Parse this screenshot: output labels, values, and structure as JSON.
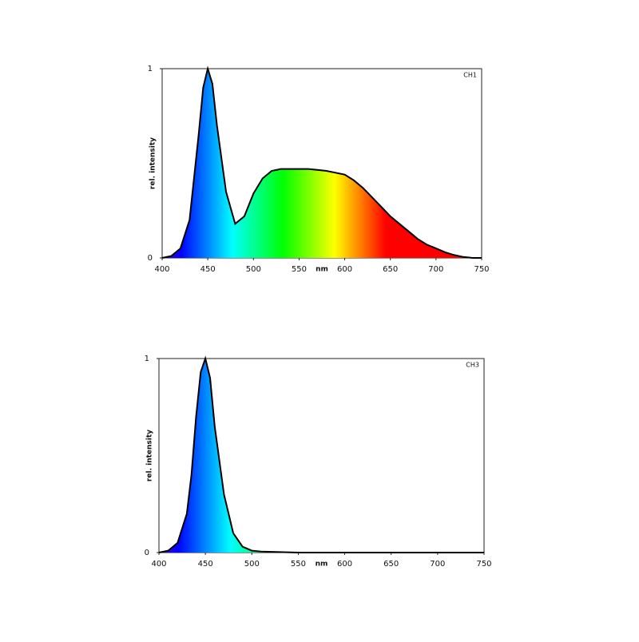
{
  "chart_data": [
    {
      "type": "area",
      "annotation": "CH1",
      "xlabel": "nm",
      "ylabel": "rel. intensity",
      "fill": "spectrum",
      "line_color": "#000000",
      "x": [
        400,
        410,
        420,
        430,
        440,
        445,
        450,
        455,
        460,
        470,
        480,
        490,
        500,
        510,
        520,
        530,
        540,
        550,
        560,
        570,
        580,
        590,
        600,
        610,
        620,
        630,
        640,
        650,
        660,
        670,
        680,
        690,
        700,
        710,
        720,
        730,
        740,
        750
      ],
      "values": [
        0,
        0.01,
        0.05,
        0.2,
        0.65,
        0.9,
        1,
        0.92,
        0.7,
        0.35,
        0.18,
        0.22,
        0.34,
        0.42,
        0.46,
        0.47,
        0.47,
        0.47,
        0.47,
        0.465,
        0.46,
        0.45,
        0.44,
        0.41,
        0.37,
        0.32,
        0.27,
        0.22,
        0.18,
        0.14,
        0.1,
        0.07,
        0.05,
        0.03,
        0.015,
        0.005,
        0,
        0
      ],
      "xlim": [
        400,
        750
      ],
      "ylim": [
        0,
        1
      ],
      "xticks": [
        400,
        450,
        500,
        550,
        600,
        650,
        700,
        750
      ],
      "yticks": [
        0,
        1
      ]
    },
    {
      "type": "area",
      "annotation": "CH3",
      "xlabel": "nm",
      "ylabel": "rel. intensity",
      "fill": "spectrum",
      "line_color": "#000000",
      "x": [
        400,
        410,
        420,
        430,
        435,
        440,
        445,
        450,
        455,
        460,
        470,
        480,
        490,
        500,
        510,
        550,
        750
      ],
      "values": [
        0,
        0.01,
        0.05,
        0.2,
        0.4,
        0.7,
        0.93,
        1,
        0.9,
        0.65,
        0.3,
        0.1,
        0.03,
        0.01,
        0.005,
        0,
        0
      ],
      "xlim": [
        400,
        750
      ],
      "ylim": [
        0,
        1
      ],
      "xticks": [
        400,
        450,
        500,
        550,
        600,
        650,
        700,
        750
      ],
      "yticks": [
        0,
        1
      ]
    }
  ]
}
